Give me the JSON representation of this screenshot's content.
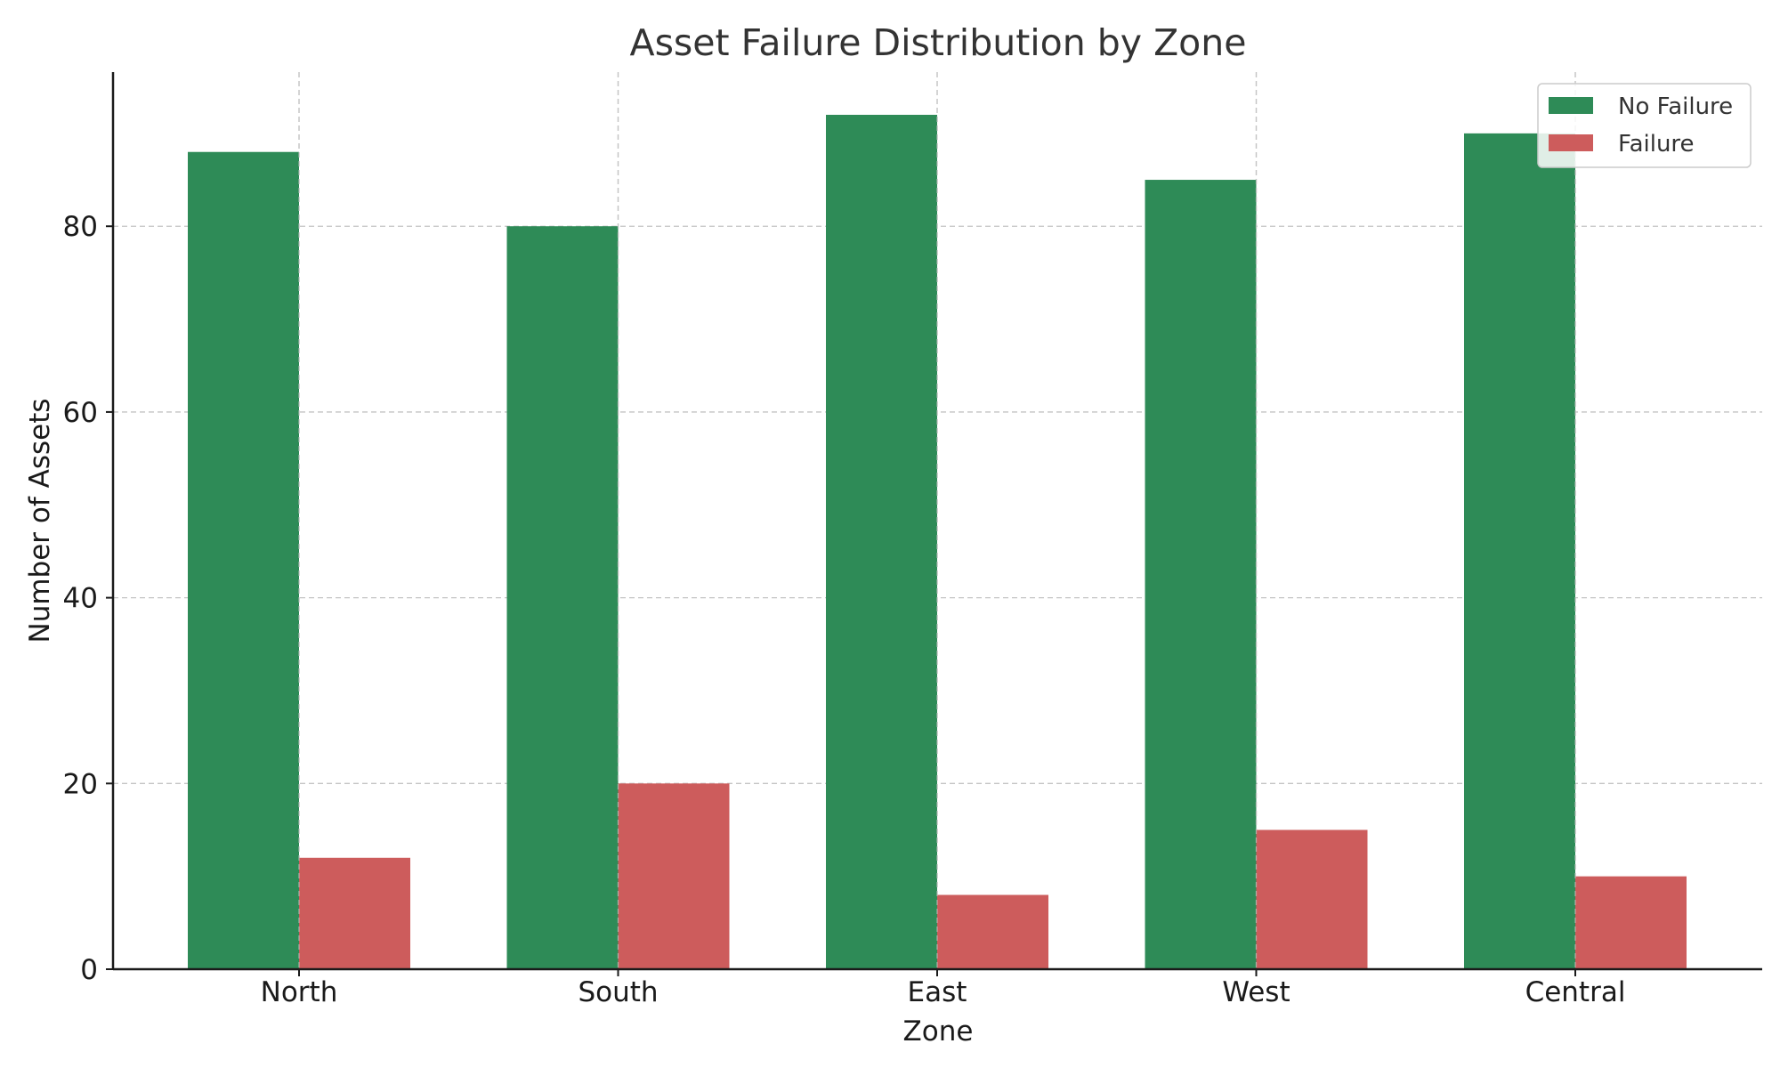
{
  "chart_data": {
    "type": "bar",
    "title": "Asset Failure Distribution by Zone",
    "xlabel": "Zone",
    "ylabel": "Number of Assets",
    "categories": [
      "North",
      "South",
      "East",
      "West",
      "Central"
    ],
    "series": [
      {
        "name": "No Failure",
        "color": "#2e8b57",
        "values": [
          88,
          80,
          92,
          85,
          90
        ]
      },
      {
        "name": "Failure",
        "color": "#cd5c5c",
        "values": [
          12,
          20,
          8,
          15,
          10
        ]
      }
    ],
    "ylim": [
      0,
      96.6
    ],
    "yticks": [
      0,
      20,
      40,
      60,
      80
    ],
    "grid": true,
    "legend_position": "top-right"
  }
}
